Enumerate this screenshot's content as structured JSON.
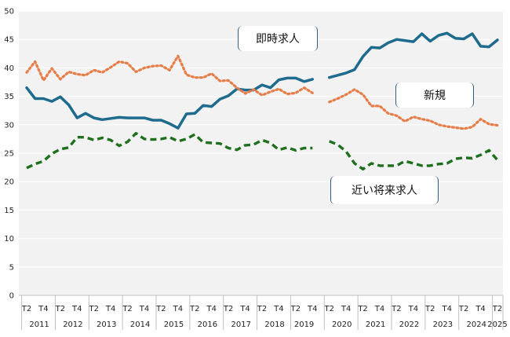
{
  "chart_data": {
    "type": "line",
    "title": "",
    "ylim": [
      0,
      50
    ],
    "y_ticks": [
      0,
      5,
      10,
      15,
      20,
      25,
      30,
      35,
      40,
      45,
      50
    ],
    "grid": true,
    "x_tick_labels": [
      "T2",
      "T4",
      "T2",
      "T4",
      "T2",
      "T4",
      "T2",
      "T4",
      "T2",
      "T4",
      "T2",
      "T4",
      "T2",
      "T4",
      "T2",
      "T4",
      "T2",
      "T4",
      "T2",
      "T4",
      "T2",
      "T4",
      "T2",
      "T4",
      "T2",
      "T4",
      "T2",
      "T4",
      "T2",
      "T4",
      "T2"
    ],
    "years": [
      "2011",
      "2012",
      "2013",
      "2014",
      "2015",
      "2016",
      "2017",
      "2018",
      "2019",
      "2020",
      "2021",
      "2022",
      "2023",
      "2024",
      "2025"
    ],
    "series": [
      {
        "name": "即時求人",
        "color": "#1f6b8e",
        "style": "solid",
        "segments": [
          [
            36.5,
            34.6,
            34.6,
            34.1,
            34.9,
            33.5,
            31.2,
            32.0,
            31.2,
            30.9,
            31.1,
            31.3,
            31.2,
            31.2,
            31.2,
            30.8,
            30.8,
            30.2,
            29.4,
            31.9,
            32.0,
            33.4,
            33.2,
            34.5,
            35.1,
            36.3,
            36.1,
            36.1,
            37.0,
            36.5,
            37.9,
            38.2,
            38.2,
            37.6,
            38.0
          ],
          [
            38.3,
            38.7,
            39.1,
            39.7,
            42.0,
            43.6,
            43.5,
            44.4,
            45.0,
            44.8,
            44.6,
            46.0,
            44.7,
            45.7,
            46.1,
            45.2,
            45.1,
            46.0,
            43.8,
            43.7,
            44.9
          ]
        ]
      },
      {
        "name": "新規",
        "color": "#e67e4a",
        "style": "dotted",
        "segments": [
          [
            39.2,
            41.1,
            37.8,
            39.9,
            38.0,
            39.3,
            38.9,
            38.7,
            39.6,
            39.2,
            40.1,
            41.1,
            40.8,
            39.3,
            40.0,
            40.3,
            40.4,
            39.6,
            42.1,
            38.8,
            38.3,
            38.3,
            39.0,
            37.7,
            37.8,
            36.5,
            35.5,
            36.2,
            35.2,
            35.8,
            36.3,
            35.4,
            35.6,
            36.5,
            35.6
          ],
          [
            34.0,
            34.6,
            35.3,
            36.2,
            35.3,
            33.3,
            33.3,
            32.0,
            31.6,
            30.6,
            31.4,
            31.0,
            30.7,
            30.0,
            29.7,
            29.5,
            29.3,
            29.6,
            31.0,
            30.1,
            29.9
          ]
        ]
      },
      {
        "name": "近い将来求人",
        "color": "#1e6f1e",
        "style": "dashed",
        "segments": [
          [
            22.4,
            23.1,
            23.6,
            24.9,
            25.7,
            26.0,
            27.8,
            27.8,
            27.3,
            27.7,
            27.3,
            26.3,
            27.0,
            28.5,
            27.5,
            27.4,
            27.5,
            27.8,
            27.1,
            27.5,
            28.3,
            26.9,
            26.8,
            26.7,
            25.9,
            25.6,
            26.4,
            26.5,
            27.3,
            26.8,
            25.6,
            26.0,
            25.5,
            25.9,
            25.9
          ],
          [
            27.1,
            26.5,
            25.3,
            23.2,
            22.2,
            23.2,
            22.8,
            22.8,
            22.8,
            23.6,
            23.2,
            22.8,
            22.8,
            23.1,
            23.2,
            24.0,
            24.2,
            24.1,
            24.7,
            25.5,
            23.8
          ]
        ]
      }
    ]
  }
}
